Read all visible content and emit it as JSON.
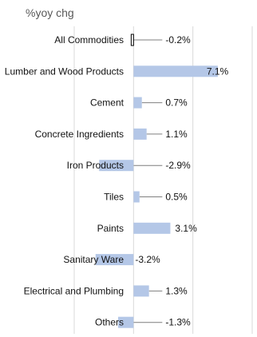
{
  "chart_data": {
    "type": "bar",
    "orientation": "horizontal",
    "subtitle": "%yoy chg",
    "categories": [
      "All Commodities",
      "Lumber and Wood Products",
      "Cement",
      "Concrete Ingredients",
      "Iron Products",
      "Tiles",
      "Paints",
      "Sanitary Ware",
      "Electrical and Plumbing",
      "Others"
    ],
    "values": [
      -0.2,
      7.1,
      0.7,
      1.1,
      -2.9,
      0.5,
      3.1,
      -3.2,
      1.3,
      -1.3
    ],
    "labels": [
      "-0.2%",
      "7.1%",
      "0.7%",
      "1.1%",
      "-2.9%",
      "0.5%",
      "3.1%",
      "-3.2%",
      "1.3%",
      "-1.3%"
    ],
    "xlim": [
      -5,
      10
    ],
    "grid": true,
    "legend": "none",
    "colors": {
      "bar": "#b4c7e7",
      "highlight_bar_fill": "#ffffff",
      "highlight_bar_stroke": "#000000",
      "grid": "#d9d9d9",
      "leader": "#7f7f7f"
    }
  }
}
